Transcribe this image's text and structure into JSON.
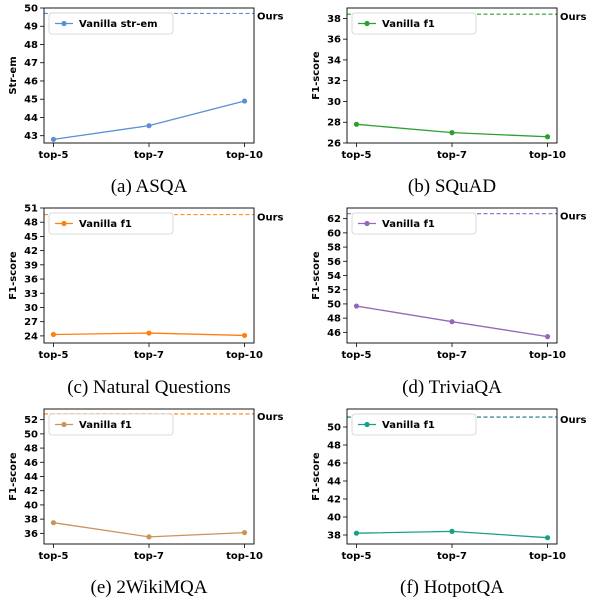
{
  "chart_data": [
    {
      "type": "line",
      "caption": "(a) ASQA",
      "categories": [
        "top-5",
        "top-7",
        "top-10"
      ],
      "ylabel": "Str-em",
      "ylim": [
        42.6,
        50.0
      ],
      "yticks": [
        43,
        44,
        45,
        46,
        47,
        48,
        49,
        50
      ],
      "series": [
        {
          "name": "Vanilla str-em",
          "values": [
            42.8,
            43.55,
            44.9
          ],
          "color": "#5b8fd6"
        }
      ],
      "reference": {
        "label": "Ours",
        "value": 49.7,
        "color": "#5b8fd6"
      },
      "legend": "top-left"
    },
    {
      "type": "line",
      "caption": "(b) SQuAD",
      "categories": [
        "top-5",
        "top-7",
        "top-10"
      ],
      "ylabel": "F1-score",
      "ylim": [
        26.0,
        39.0
      ],
      "yticks": [
        26,
        28,
        30,
        32,
        34,
        36,
        38
      ],
      "series": [
        {
          "name": "Vanilla f1",
          "values": [
            27.8,
            27.0,
            26.6
          ],
          "color": "#2ca02c"
        }
      ],
      "reference": {
        "label": "Ours",
        "value": 38.4,
        "color": "#2ca02c"
      },
      "legend": "top-left"
    },
    {
      "type": "line",
      "caption": "(c) Natural Questions",
      "categories": [
        "top-5",
        "top-7",
        "top-10"
      ],
      "ylabel": "F1-score",
      "ylim": [
        22.5,
        51.0
      ],
      "yticks": [
        24,
        27,
        30,
        33,
        36,
        39,
        42,
        45,
        48,
        51
      ],
      "series": [
        {
          "name": "Vanilla f1",
          "values": [
            24.3,
            24.6,
            24.1
          ],
          "color": "#ff7f0e"
        }
      ],
      "reference": {
        "label": "Ours",
        "value": 49.6,
        "color": "#ff7f0e"
      },
      "legend": "top-left"
    },
    {
      "type": "line",
      "caption": "(d) TriviaQA",
      "categories": [
        "top-5",
        "top-7",
        "top-10"
      ],
      "ylabel": "F1-score",
      "ylim": [
        44.5,
        63.5
      ],
      "yticks": [
        46,
        48,
        50,
        52,
        54,
        56,
        58,
        60,
        62
      ],
      "series": [
        {
          "name": "Vanilla f1",
          "values": [
            49.7,
            47.5,
            45.4
          ],
          "color": "#9467bd"
        }
      ],
      "reference": {
        "label": "Ours",
        "value": 62.7,
        "color": "#9467bd"
      },
      "legend": "top-left"
    },
    {
      "type": "line",
      "caption": "(e) 2WikiMQA",
      "categories": [
        "top-5",
        "top-7",
        "top-10"
      ],
      "ylabel": "F1-score",
      "ylim": [
        34.5,
        53.5
      ],
      "yticks": [
        36,
        38,
        40,
        42,
        44,
        46,
        48,
        50,
        52
      ],
      "series": [
        {
          "name": "Vanilla f1",
          "values": [
            37.5,
            35.5,
            36.1
          ],
          "color": "#c8945a"
        }
      ],
      "reference": {
        "label": "Ours",
        "value": 52.8,
        "color": "#ff7f0e"
      },
      "legend": "top-left"
    },
    {
      "type": "line",
      "caption": "(f) HotpotQA",
      "categories": [
        "top-5",
        "top-7",
        "top-10"
      ],
      "ylabel": "F1-score",
      "ylim": [
        37.0,
        52.0
      ],
      "yticks": [
        38,
        40,
        42,
        44,
        46,
        48,
        50
      ],
      "series": [
        {
          "name": "Vanilla f1",
          "values": [
            38.2,
            38.4,
            37.7
          ],
          "color": "#17a085"
        }
      ],
      "reference": {
        "label": "Ours",
        "value": 51.1,
        "color": "#17728a"
      },
      "legend": "top-left"
    }
  ]
}
